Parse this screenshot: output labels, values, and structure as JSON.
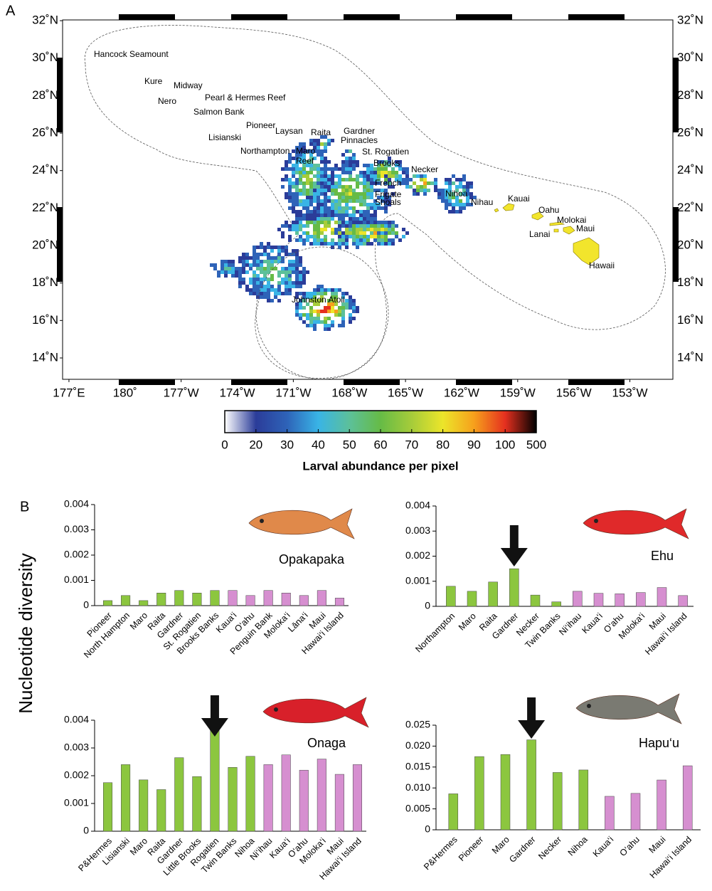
{
  "panel_a": {
    "label": "A"
  },
  "panel_b": {
    "label": "B",
    "ylabel": "Nucleotide diversity"
  },
  "chart_data": [
    {
      "type": "map",
      "xlim": [
        176.66,
        209.3
      ],
      "ylim": [
        12.86,
        32.04
      ],
      "xticks": [
        {
          "value": 177,
          "label": "177˚E"
        },
        {
          "value": 180,
          "label": "180˚"
        },
        {
          "value": 183,
          "label": "177˚W"
        },
        {
          "value": 186,
          "label": "174˚W"
        },
        {
          "value": 189,
          "label": "171˚W"
        },
        {
          "value": 192,
          "label": "168˚W"
        },
        {
          "value": 195,
          "label": "165˚W"
        },
        {
          "value": 198,
          "label": "162˚W"
        },
        {
          "value": 201,
          "label": "159˚W"
        },
        {
          "value": 204,
          "label": "156˚W"
        },
        {
          "value": 207,
          "label": "153˚W"
        }
      ],
      "yticks": [
        {
          "value": 14,
          "label": "14˚N"
        },
        {
          "value": 16,
          "label": "16˚N"
        },
        {
          "value": 18,
          "label": "18˚N"
        },
        {
          "value": 20,
          "label": "20˚N"
        },
        {
          "value": 22,
          "label": "22˚N"
        },
        {
          "value": 24,
          "label": "24˚N"
        },
        {
          "value": 26,
          "label": "26˚N"
        },
        {
          "value": 28,
          "label": "28˚N"
        },
        {
          "value": 30,
          "label": "30˚N"
        },
        {
          "value": 32,
          "label": "32˚N"
        }
      ],
      "places": [
        "Hancock Seamount",
        "Kure",
        "Midway",
        "Nero",
        "Pearl & Hermes Reef",
        "Salmon Bank",
        "Pioneer",
        "Laysan",
        "Raita",
        "Gardner",
        "Lisianski",
        "Pinnacles",
        "Northampton",
        "Maro",
        "St. Rogatien",
        "Reef",
        "Brooks",
        "Necker",
        "French",
        "Frigate",
        "Shoals",
        "Nihoa",
        "Nihau",
        "Kauai",
        "Oahu",
        "Molokai",
        "Maui",
        "Lanai",
        "Hawaii",
        "Johnston Atoll"
      ],
      "colorbar": {
        "label": "Larval abundance per pixel",
        "ticks": [
          0,
          20,
          30,
          40,
          50,
          60,
          70,
          80,
          90,
          100,
          500
        ],
        "colors": [
          "#ffffff",
          "#2b3c99",
          "#2e63b8",
          "#39b4e6",
          "#5cc09a",
          "#66bb46",
          "#a6cc3a",
          "#ece52a",
          "#f6a01c",
          "#e5301f",
          "#000000"
        ]
      }
    },
    {
      "type": "bar",
      "title": "Opakapaka",
      "categories": [
        "Pioneer",
        "North Hampton",
        "Maro",
        "Raita",
        "Gardner",
        "St. Rogatien",
        "Brooks Banks",
        "Kaua‘i",
        "O‘ahu",
        "Penguin Bank",
        "Moloka‘i",
        "Lāna‘i",
        "Maui",
        "Hawai‘i Island"
      ],
      "values": [
        0.0002,
        0.0004,
        0.0002,
        0.0005,
        0.0006,
        0.0005,
        0.0006,
        0.0006,
        0.0004,
        0.0006,
        0.0005,
        0.0004,
        0.0006,
        0.0003
      ],
      "colors": [
        "#8cc63f",
        "#8cc63f",
        "#8cc63f",
        "#8cc63f",
        "#8cc63f",
        "#8cc63f",
        "#8cc63f",
        "#d68fd0",
        "#d68fd0",
        "#d68fd0",
        "#d68fd0",
        "#d68fd0",
        "#d68fd0",
        "#d68fd0"
      ],
      "ylim": [
        0,
        0.004
      ],
      "yticks": [
        0,
        0.001,
        0.002,
        0.003,
        0.004
      ]
    },
    {
      "type": "bar",
      "title": "Ehu",
      "categories": [
        "Northampton",
        "Maro",
        "Raita",
        "Gardner",
        "Necker",
        "Twin Banks",
        "Ni‘ihau",
        "Kaua‘i",
        "O‘ahu",
        "Moloka‘i",
        "Maui",
        "Hawai‘i Island"
      ],
      "values": [
        0.0008,
        0.0006,
        0.00097,
        0.0015,
        0.00045,
        0.00018,
        0.0006,
        0.00052,
        0.0005,
        0.00055,
        0.00075,
        0.00043
      ],
      "colors": [
        "#8cc63f",
        "#8cc63f",
        "#8cc63f",
        "#8cc63f",
        "#8cc63f",
        "#8cc63f",
        "#d68fd0",
        "#d68fd0",
        "#d68fd0",
        "#d68fd0",
        "#d68fd0",
        "#d68fd0"
      ],
      "ylim": [
        0,
        0.004
      ],
      "yticks": [
        0,
        0.001,
        0.002,
        0.003,
        0.004
      ]
    },
    {
      "type": "bar",
      "title": "Onaga",
      "categories": [
        "P&Hermes",
        "Lisianski",
        "Maro",
        "Raita",
        "Gardner",
        "Little Brooks",
        "Rogatien",
        "Twin Banks",
        "Nihoa",
        "Ni‘ihau",
        "Kaua‘i",
        "O‘ahu",
        "Moloka‘i",
        "Maui",
        "Hawai‘i Island"
      ],
      "values": [
        0.00175,
        0.0024,
        0.00185,
        0.0015,
        0.00265,
        0.00197,
        0.0037,
        0.0023,
        0.0027,
        0.0024,
        0.00275,
        0.0022,
        0.0026,
        0.00205,
        0.0024
      ],
      "colors": [
        "#8cc63f",
        "#8cc63f",
        "#8cc63f",
        "#8cc63f",
        "#8cc63f",
        "#8cc63f",
        "#8cc63f",
        "#8cc63f",
        "#8cc63f",
        "#d68fd0",
        "#d68fd0",
        "#d68fd0",
        "#d68fd0",
        "#d68fd0",
        "#d68fd0"
      ],
      "ylim": [
        0,
        0.004
      ],
      "yticks": [
        0,
        0.001,
        0.002,
        0.003,
        0.004
      ]
    },
    {
      "type": "bar",
      "title": "Hapu‘u",
      "categories": [
        "P&Hermes",
        "Pioneer",
        "Maro",
        "Gardner",
        "Necker",
        "Nihoa",
        "Kaua‘i",
        "O‘ahu",
        "Maui",
        "Hawai‘i Island"
      ],
      "values": [
        0.0086,
        0.0175,
        0.018,
        0.0215,
        0.0137,
        0.0143,
        0.008,
        0.0087,
        0.0119,
        0.0153
      ],
      "colors": [
        "#8cc63f",
        "#8cc63f",
        "#8cc63f",
        "#8cc63f",
        "#8cc63f",
        "#8cc63f",
        "#d68fd0",
        "#d68fd0",
        "#d68fd0",
        "#d68fd0"
      ],
      "ylim": [
        0,
        0.025
      ],
      "yticks": [
        0,
        {
          "value": 0.005,
          "label": "0.005"
        },
        {
          "value": 0.01,
          "label": "0.010"
        },
        {
          "value": 0.015,
          "label": "0.015"
        },
        {
          "value": 0.02,
          "label": "0.020"
        },
        {
          "value": 0.025,
          "label": "0.025"
        }
      ]
    }
  ]
}
